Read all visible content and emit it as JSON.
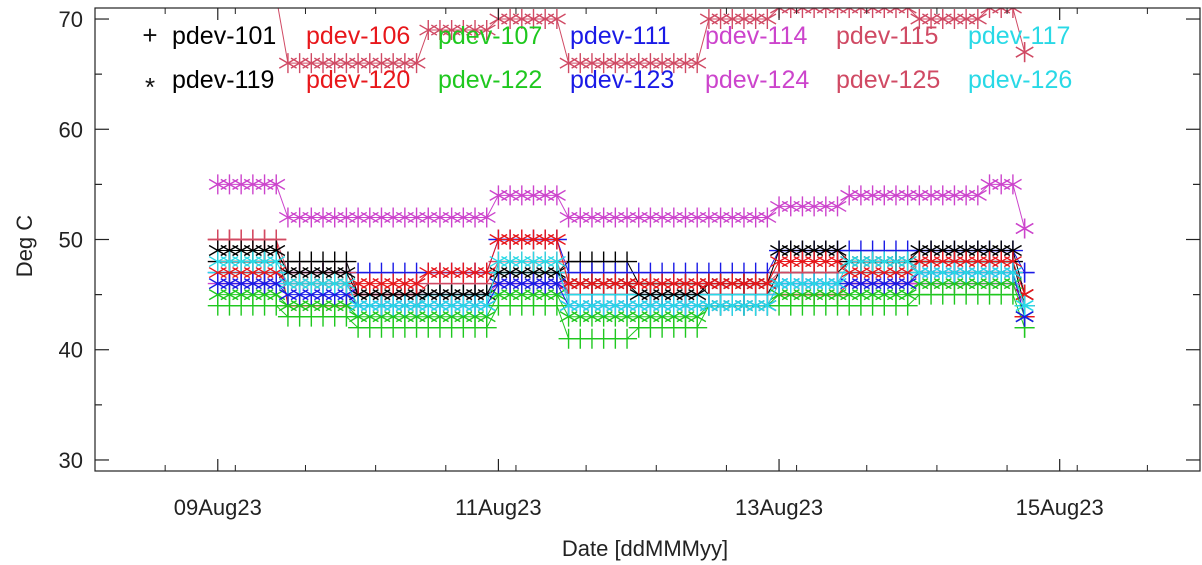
{
  "chart_data": {
    "type": "scatter",
    "xlabel": "Date [ddMMMyy]",
    "ylabel": "Deg C",
    "x_range": [
      "2023-08-08T03:00",
      "2023-08-16T00:00"
    ],
    "y_range": [
      29,
      71
    ],
    "x_ticks": [
      {
        "value": "2023-08-09",
        "label": "09Aug23"
      },
      {
        "value": "2023-08-11",
        "label": "11Aug23"
      },
      {
        "value": "2023-08-13",
        "label": "13Aug23"
      },
      {
        "value": "2023-08-15",
        "label": "15Aug23"
      }
    ],
    "y_ticks": [
      30,
      40,
      50,
      60,
      70
    ],
    "grid": false,
    "legend_position": "top-left",
    "marker_groups": [
      {
        "symbol": "+",
        "series": [
          "pdev-101",
          "pdev-106",
          "pdev-107",
          "pdev-111",
          "pdev-114",
          "pdev-115",
          "pdev-117"
        ]
      },
      {
        "symbol": "*",
        "series": [
          "pdev-119",
          "pdev-120",
          "pdev-122",
          "pdev-123",
          "pdev-124",
          "pdev-125",
          "pdev-126"
        ]
      }
    ],
    "series": [
      {
        "name": "pdev-101",
        "marker": "+",
        "color": "#000000",
        "x": [
          "2023-08-09T00:00",
          "2023-08-09T12:00",
          "2023-08-10T00:00",
          "2023-08-10T12:00",
          "2023-08-11T00:00",
          "2023-08-11T12:00",
          "2023-08-12T00:00",
          "2023-08-12T12:00",
          "2023-08-13T00:00",
          "2023-08-13T12:00",
          "2023-08-14T00:00",
          "2023-08-14T12:00",
          "2023-08-14T18:00"
        ],
        "y": [
          48,
          48,
          45,
          45,
          47,
          48,
          46,
          45,
          47,
          48,
          48,
          48,
          44
        ]
      },
      {
        "name": "pdev-106",
        "marker": "+",
        "color": "#e8171b",
        "x": [
          "2023-08-09T00:00",
          "2023-08-09T12:00",
          "2023-08-10T00:00",
          "2023-08-10T12:00",
          "2023-08-11T00:00",
          "2023-08-11T12:00",
          "2023-08-12T00:00",
          "2023-08-12T12:00",
          "2023-08-13T00:00",
          "2023-08-13T12:00",
          "2023-08-14T00:00",
          "2023-08-14T12:00",
          "2023-08-14T18:00"
        ],
        "y": [
          50,
          44,
          44,
          45,
          47,
          45,
          45,
          45,
          45,
          46,
          47,
          47,
          43
        ]
      },
      {
        "name": "pdev-107",
        "marker": "+",
        "color": "#1fc81f",
        "x": [
          "2023-08-09T00:00",
          "2023-08-09T12:00",
          "2023-08-10T00:00",
          "2023-08-10T12:00",
          "2023-08-11T00:00",
          "2023-08-11T12:00",
          "2023-08-12T00:00",
          "2023-08-12T12:00",
          "2023-08-13T00:00",
          "2023-08-13T12:00",
          "2023-08-14T00:00",
          "2023-08-14T12:00",
          "2023-08-14T18:00"
        ],
        "y": [
          44,
          43,
          42,
          42,
          44,
          41,
          42,
          44,
          44,
          44,
          45,
          45,
          42
        ]
      },
      {
        "name": "pdev-111",
        "marker": "+",
        "color": "#1a1ae6",
        "x": [
          "2023-08-09T00:00",
          "2023-08-09T12:00",
          "2023-08-10T00:00",
          "2023-08-10T12:00",
          "2023-08-11T00:00",
          "2023-08-11T12:00",
          "2023-08-12T00:00",
          "2023-08-12T12:00",
          "2023-08-13T00:00",
          "2023-08-13T12:00",
          "2023-08-14T00:00",
          "2023-08-14T12:00",
          "2023-08-14T18:00"
        ],
        "y": [
          47,
          47,
          47,
          47,
          50,
          47,
          47,
          47,
          49,
          49,
          49,
          49,
          47
        ]
      },
      {
        "name": "pdev-114",
        "marker": "+",
        "color": "#cc44cc",
        "x": [
          "2023-08-09T00:00",
          "2023-08-09T12:00",
          "2023-08-10T00:00",
          "2023-08-10T12:00",
          "2023-08-11T00:00",
          "2023-08-11T12:00",
          "2023-08-12T00:00",
          "2023-08-12T12:00",
          "2023-08-13T00:00",
          "2023-08-13T12:00",
          "2023-08-14T00:00",
          "2023-08-14T12:00",
          "2023-08-14T18:00"
        ],
        "y": [
          46,
          46,
          45,
          45,
          46,
          45,
          45,
          45,
          46,
          46,
          46,
          46,
          44
        ]
      },
      {
        "name": "pdev-115",
        "marker": "+",
        "color": "#d04a64",
        "x": [
          "2023-08-09T00:00",
          "2023-08-09T12:00",
          "2023-08-10T00:00",
          "2023-08-10T12:00",
          "2023-08-11T00:00",
          "2023-08-11T12:00",
          "2023-08-12T00:00",
          "2023-08-12T12:00",
          "2023-08-13T00:00",
          "2023-08-13T12:00",
          "2023-08-14T00:00",
          "2023-08-14T12:00",
          "2023-08-14T18:00"
        ],
        "y": [
          50,
          47,
          45,
          46,
          48,
          45,
          45,
          46,
          47,
          47,
          47,
          47,
          44
        ]
      },
      {
        "name": "pdev-117",
        "marker": "+",
        "color": "#29d9e6",
        "x": [
          "2023-08-09T00:00",
          "2023-08-09T12:00",
          "2023-08-10T00:00",
          "2023-08-10T12:00",
          "2023-08-11T00:00",
          "2023-08-11T12:00",
          "2023-08-12T00:00",
          "2023-08-12T12:00",
          "2023-08-13T00:00",
          "2023-08-13T12:00",
          "2023-08-14T00:00",
          "2023-08-14T12:00",
          "2023-08-14T18:00"
        ],
        "y": [
          47,
          46,
          44,
          45,
          47,
          45,
          45,
          45,
          46,
          47,
          47,
          47,
          44
        ]
      },
      {
        "name": "pdev-119",
        "marker": "*",
        "color": "#000000",
        "x": [
          "2023-08-09T00:00",
          "2023-08-09T12:00",
          "2023-08-10T00:00",
          "2023-08-10T12:00",
          "2023-08-11T00:00",
          "2023-08-11T12:00",
          "2023-08-12T00:00",
          "2023-08-12T12:00",
          "2023-08-13T00:00",
          "2023-08-13T12:00",
          "2023-08-14T00:00",
          "2023-08-14T12:00",
          "2023-08-14T18:00"
        ],
        "y": [
          49,
          47,
          45,
          45,
          47,
          46,
          45,
          46,
          49,
          48,
          49,
          49,
          45
        ]
      },
      {
        "name": "pdev-120",
        "marker": "*",
        "color": "#e8171b",
        "x": [
          "2023-08-09T00:00",
          "2023-08-09T12:00",
          "2023-08-10T00:00",
          "2023-08-10T12:00",
          "2023-08-11T00:00",
          "2023-08-11T12:00",
          "2023-08-12T00:00",
          "2023-08-12T12:00",
          "2023-08-13T00:00",
          "2023-08-13T12:00",
          "2023-08-14T00:00",
          "2023-08-14T12:00",
          "2023-08-14T18:00"
        ],
        "y": [
          47,
          46,
          46,
          47,
          50,
          46,
          46,
          46,
          48,
          47,
          48,
          48,
          45
        ]
      },
      {
        "name": "pdev-122",
        "marker": "*",
        "color": "#1fc81f",
        "x": [
          "2023-08-09T00:00",
          "2023-08-09T12:00",
          "2023-08-10T00:00",
          "2023-08-10T12:00",
          "2023-08-11T00:00",
          "2023-08-11T12:00",
          "2023-08-12T00:00",
          "2023-08-12T12:00",
          "2023-08-13T00:00",
          "2023-08-13T12:00",
          "2023-08-14T00:00",
          "2023-08-14T12:00",
          "2023-08-14T18:00"
        ],
        "y": [
          45,
          44,
          43,
          43,
          45,
          43,
          43,
          44,
          45,
          45,
          46,
          46,
          43
        ]
      },
      {
        "name": "pdev-123",
        "marker": "*",
        "color": "#1a1ae6",
        "x": [
          "2023-08-09T00:00",
          "2023-08-09T12:00",
          "2023-08-10T00:00",
          "2023-08-10T12:00",
          "2023-08-11T00:00",
          "2023-08-11T12:00",
          "2023-08-12T00:00",
          "2023-08-12T12:00",
          "2023-08-13T00:00",
          "2023-08-13T12:00",
          "2023-08-14T00:00",
          "2023-08-14T12:00",
          "2023-08-14T18:00"
        ],
        "y": [
          46,
          45,
          44,
          44,
          46,
          44,
          44,
          44,
          46,
          46,
          47,
          47,
          43
        ]
      },
      {
        "name": "pdev-124",
        "marker": "*",
        "color": "#cc44cc",
        "x": [
          "2023-08-09T00:00",
          "2023-08-09T12:00",
          "2023-08-10T00:00",
          "2023-08-10T12:00",
          "2023-08-11T00:00",
          "2023-08-11T12:00",
          "2023-08-12T00:00",
          "2023-08-12T12:00",
          "2023-08-13T00:00",
          "2023-08-13T12:00",
          "2023-08-14T00:00",
          "2023-08-14T12:00",
          "2023-08-14T18:00"
        ],
        "y": [
          55,
          52,
          52,
          52,
          54,
          52,
          52,
          52,
          53,
          54,
          54,
          55,
          51
        ]
      },
      {
        "name": "pdev-125",
        "marker": "*",
        "color": "#d04a64",
        "x": [
          "2023-08-09T00:00",
          "2023-08-09T06:00",
          "2023-08-09T12:00",
          "2023-08-10T00:00",
          "2023-08-10T12:00",
          "2023-08-11T00:00",
          "2023-08-11T12:00",
          "2023-08-12T00:00",
          "2023-08-12T12:00",
          "2023-08-13T00:00",
          "2023-08-13T12:00",
          "2023-08-14T00:00",
          "2023-08-14T12:00",
          "2023-08-14T18:00"
        ],
        "y": [
          73,
          72,
          66,
          66,
          69,
          70,
          66,
          66,
          70,
          71,
          71,
          70,
          71,
          67
        ]
      },
      {
        "name": "pdev-126",
        "marker": "*",
        "color": "#29d9e6",
        "x": [
          "2023-08-09T00:00",
          "2023-08-09T12:00",
          "2023-08-10T00:00",
          "2023-08-10T12:00",
          "2023-08-11T00:00",
          "2023-08-11T12:00",
          "2023-08-12T00:00",
          "2023-08-12T12:00",
          "2023-08-13T00:00",
          "2023-08-13T12:00",
          "2023-08-14T00:00",
          "2023-08-14T12:00",
          "2023-08-14T18:00"
        ],
        "y": [
          48,
          46,
          44,
          44,
          48,
          44,
          44,
          44,
          46,
          48,
          47,
          47,
          44
        ]
      }
    ]
  }
}
